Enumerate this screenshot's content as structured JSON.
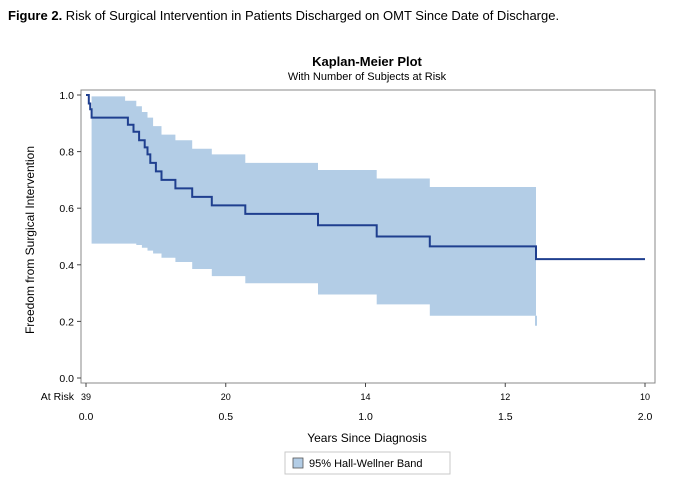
{
  "figure_caption": {
    "label": "Figure 2.",
    "text": " Risk of Surgical Intervention in Patients Discharged on OMT Since Date of Discharge."
  },
  "chart_data": {
    "type": "line",
    "title": "Kaplan-Meier Plot",
    "subtitle": "With Number of Subjects at Risk",
    "xlabel": "Years Since Diagnosis",
    "ylabel": "Freedom from Surgical Intervention",
    "xlim": [
      0,
      2.0
    ],
    "ylim": [
      0,
      1.0
    ],
    "xticks": [
      "0.0",
      "0.5",
      "1.0",
      "1.5",
      "2.0"
    ],
    "yticks": [
      "0.0",
      "0.2",
      "0.4",
      "0.6",
      "0.8",
      "1.0"
    ],
    "grid": false,
    "legend_position": "bottom-center",
    "line_color": "#1f3f8f",
    "band_color": "#b3cde6",
    "series": [
      {
        "name": "Kaplan-Meier estimate",
        "x": [
          0,
          0.01,
          0.015,
          0.02,
          0.04,
          0.15,
          0.17,
          0.19,
          0.21,
          0.22,
          0.23,
          0.25,
          0.27,
          0.29,
          0.32,
          0.38,
          0.45,
          0.57,
          0.83,
          1.04,
          1.23,
          1.61,
          2.0
        ],
        "y": [
          1.0,
          0.97,
          0.95,
          0.92,
          0.92,
          0.895,
          0.87,
          0.84,
          0.815,
          0.79,
          0.76,
          0.73,
          0.7,
          0.7,
          0.67,
          0.64,
          0.61,
          0.58,
          0.54,
          0.5,
          0.465,
          0.42,
          0.42
        ]
      },
      {
        "name": "95% Hall-Wellner Band",
        "x": [
          0.02,
          0.04,
          0.14,
          0.18,
          0.2,
          0.22,
          0.24,
          0.27,
          0.32,
          0.38,
          0.45,
          0.57,
          0.83,
          1.04,
          1.23,
          1.61
        ],
        "upper": [
          0.995,
          0.995,
          0.98,
          0.96,
          0.94,
          0.92,
          0.89,
          0.86,
          0.84,
          0.81,
          0.79,
          0.76,
          0.735,
          0.705,
          0.675,
          0.675
        ],
        "lower": [
          0.475,
          0.475,
          0.475,
          0.47,
          0.46,
          0.45,
          0.44,
          0.425,
          0.41,
          0.385,
          0.36,
          0.335,
          0.295,
          0.26,
          0.22,
          0.22
        ]
      }
    ],
    "at_risk": {
      "label": "At Risk",
      "x": [
        0.0,
        0.5,
        1.0,
        1.5,
        2.0
      ],
      "values": [
        "39",
        "20",
        "14",
        "12",
        "10"
      ]
    },
    "legend": [
      {
        "label": "95% Hall-Wellner Band",
        "color": "#b3cde6"
      }
    ]
  }
}
